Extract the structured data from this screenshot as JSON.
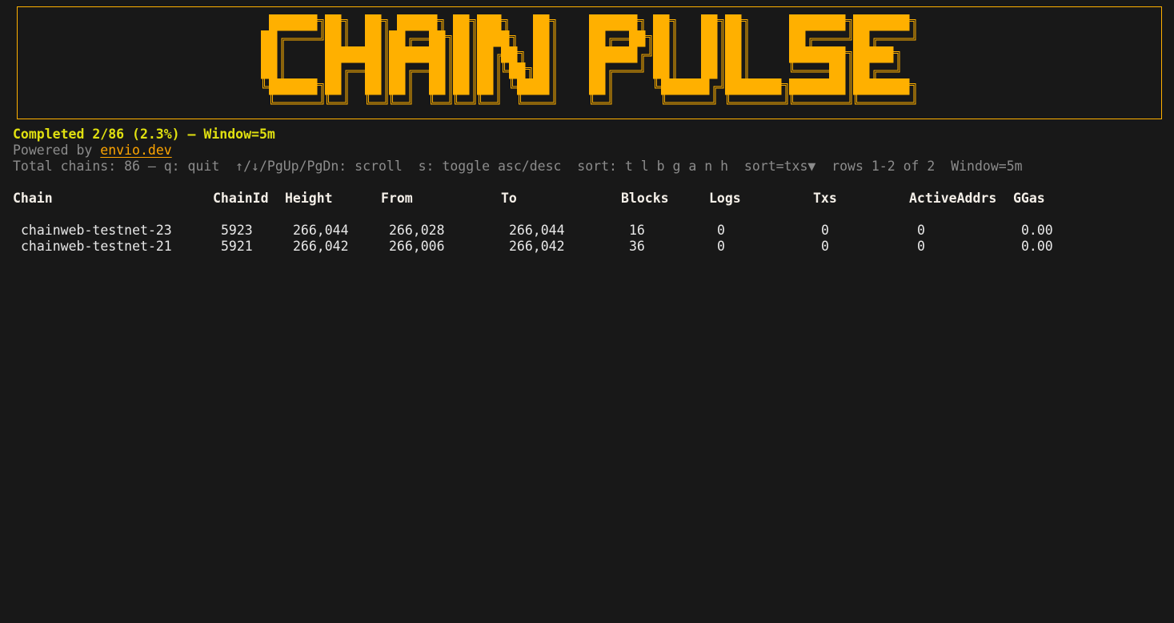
{
  "banner": {
    "title": "CHAIN PULSE",
    "color": "#ffb000"
  },
  "status_line": "Completed 2/86 (2.3%) — Window=5m",
  "powered": {
    "prefix": "Powered by ",
    "link": "envio.dev"
  },
  "help_line": "Total chains: 86 — q: quit  ↑/↓/PgUp/PgDn: scroll  s: toggle asc/desc  sort: t l b g a n h  sort=txs▼  rows 1-2 of 2  Window=5m",
  "table": {
    "columns": [
      "Chain",
      "ChainId",
      "Height",
      "From",
      "To",
      "Blocks",
      "Logs",
      "Txs",
      "ActiveAddrs",
      "GGas"
    ],
    "rows": [
      [
        "chainweb-testnet-23",
        "5923",
        "266,044",
        "266,028",
        "266,044",
        "16",
        "0",
        "0",
        "0",
        "0.00"
      ],
      [
        "chainweb-testnet-21",
        "5921",
        "266,042",
        "266,006",
        "266,042",
        "36",
        "0",
        "0",
        "0",
        "0.00"
      ]
    ]
  },
  "colors": {
    "background": "#181818",
    "accent": "#ffb000",
    "status": "#e0e010",
    "muted": "#8c8c8c"
  }
}
